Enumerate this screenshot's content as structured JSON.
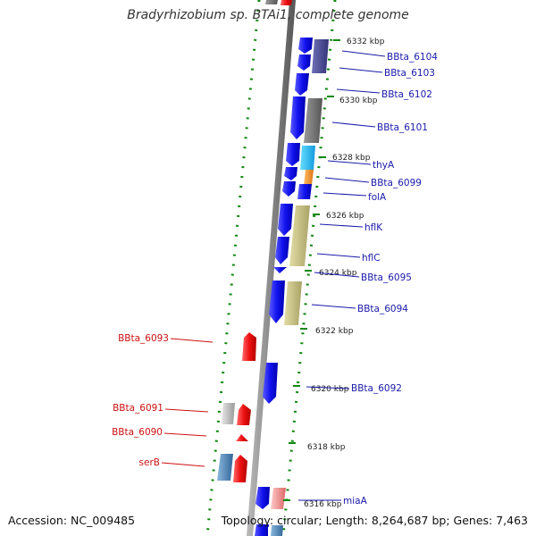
{
  "title": "Bradyrhizobium sp. BTAi1, complete genome",
  "footer": {
    "accession": "Accession: NC_009485",
    "topology": "Topology: circular; Length: 8,264,687 bp; Genes: 7,463"
  },
  "colors": {
    "forward": "#1010ee",
    "reverse": "#ee1111",
    "backbone": "#888888",
    "ticks": "#118811",
    "label_forward": "#1a1aaa",
    "label_reverse": "#cc1111"
  },
  "ticks": [
    "6332 kbp",
    "6330 kbp",
    "6328 kbp",
    "6326 kbp",
    "6324 kbp",
    "6322 kbp",
    "6320 kbp",
    "6318 kbp",
    "6316 kbp"
  ],
  "gene_labels_right": [
    "BBta_6104",
    "BBta_6103",
    "BBta_6102",
    "BBta_6101",
    "thyA",
    "BBta_6099",
    "folA",
    "hflK",
    "hflC",
    "BBta_6095",
    "BBta_6094",
    "BBta_6092",
    "miaA"
  ],
  "gene_labels_left": [
    "BBta_6093",
    "BBta_6091",
    "BBta_6090",
    "serB"
  ]
}
